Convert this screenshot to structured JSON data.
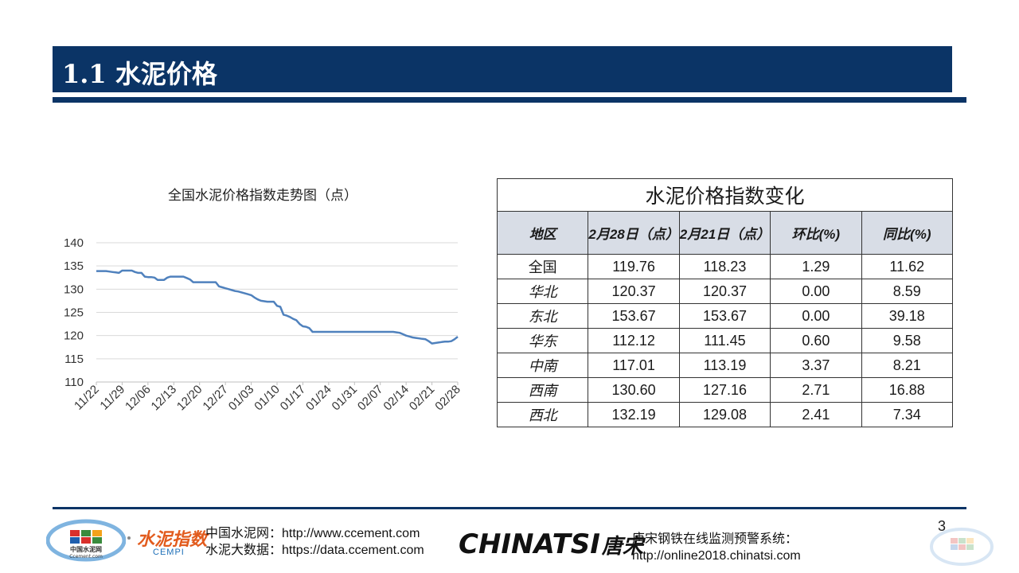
{
  "header": {
    "title": "1.1 水泥价格"
  },
  "chart_data": {
    "type": "line",
    "title": "全国水泥价格指数走势图（点）",
    "xlabel": "",
    "ylabel": "",
    "ylim": [
      110,
      140
    ],
    "yticks": [
      110,
      115,
      120,
      125,
      130,
      135,
      140
    ],
    "xtick_labels": [
      "11/22",
      "11/29",
      "12/06",
      "12/13",
      "12/20",
      "12/27",
      "01/03",
      "01/10",
      "01/17",
      "01/24",
      "01/31",
      "02/07",
      "02/14",
      "02/21",
      "02/28"
    ],
    "grid": true,
    "color": "#4f81bd",
    "values": [
      133.9,
      133.9,
      133.9,
      133.9,
      133.8,
      133.7,
      133.6,
      133.5,
      134.0,
      134.0,
      134.0,
      134.0,
      133.7,
      133.5,
      133.5,
      132.7,
      132.6,
      132.6,
      132.5,
      132.0,
      132.0,
      132.0,
      132.5,
      132.7,
      132.7,
      132.7,
      132.7,
      132.7,
      132.4,
      132.1,
      131.5,
      131.5,
      131.5,
      131.5,
      131.5,
      131.5,
      131.5,
      131.5,
      130.6,
      130.4,
      130.2,
      130.0,
      129.8,
      129.6,
      129.5,
      129.3,
      129.1,
      128.9,
      128.7,
      128.2,
      127.8,
      127.5,
      127.4,
      127.3,
      127.3,
      127.3,
      126.4,
      126.2,
      124.5,
      124.3,
      124.0,
      123.6,
      123.3,
      122.5,
      122.0,
      121.9,
      121.6,
      120.8,
      120.8,
      120.8,
      120.8,
      120.8,
      120.8,
      120.8,
      120.8,
      120.8,
      120.8,
      120.8,
      120.8,
      120.8,
      120.8,
      120.8,
      120.8,
      120.8,
      120.8,
      120.8,
      120.8,
      120.8,
      120.8,
      120.8,
      120.8,
      120.8,
      120.8,
      120.7,
      120.6,
      120.3,
      120.0,
      119.8,
      119.6,
      119.5,
      119.4,
      119.3,
      119.2,
      118.8,
      118.3,
      118.4,
      118.5,
      118.6,
      118.7,
      118.7,
      118.8,
      119.2,
      119.76
    ]
  },
  "table": {
    "caption": "水泥价格指数变化",
    "headers": [
      "地区",
      "2月28日（点）",
      "2月21日（点）",
      "环比(%)",
      "同比(%)"
    ],
    "rows": [
      [
        "全国",
        "119.76",
        "118.23",
        "1.29",
        "11.62"
      ],
      [
        "华北",
        "120.37",
        "120.37",
        "0.00",
        "8.59"
      ],
      [
        "东北",
        "153.67",
        "153.67",
        "0.00",
        "39.18"
      ],
      [
        "华东",
        "112.12",
        "111.45",
        "0.60",
        "9.58"
      ],
      [
        "中南",
        "117.01",
        "113.19",
        "3.37",
        "8.21"
      ],
      [
        "西南",
        "130.60",
        "127.16",
        "2.71",
        "16.88"
      ],
      [
        "西北",
        "132.19",
        "129.08",
        "2.41",
        "7.34"
      ]
    ]
  },
  "footer": {
    "page_number": "3",
    "logo_ccement_text": "中国水泥网",
    "logo_ccement_sub": "Ccement.com",
    "logo_cempi_text": "水泥指数",
    "logo_cempi_sub": "CEMPI",
    "ccement_line1": "中国水泥网：http://www.ccement.com",
    "ccement_line2": "水泥大数据：https://data.ccement.com",
    "chinatsi_brand": "CHINATSI",
    "chinatsi_cn": "唐宋",
    "tangsong_line1": "唐宋钢铁在线监测预警系统：",
    "tangsong_line2": "http://online2018.chinatsi.com"
  }
}
